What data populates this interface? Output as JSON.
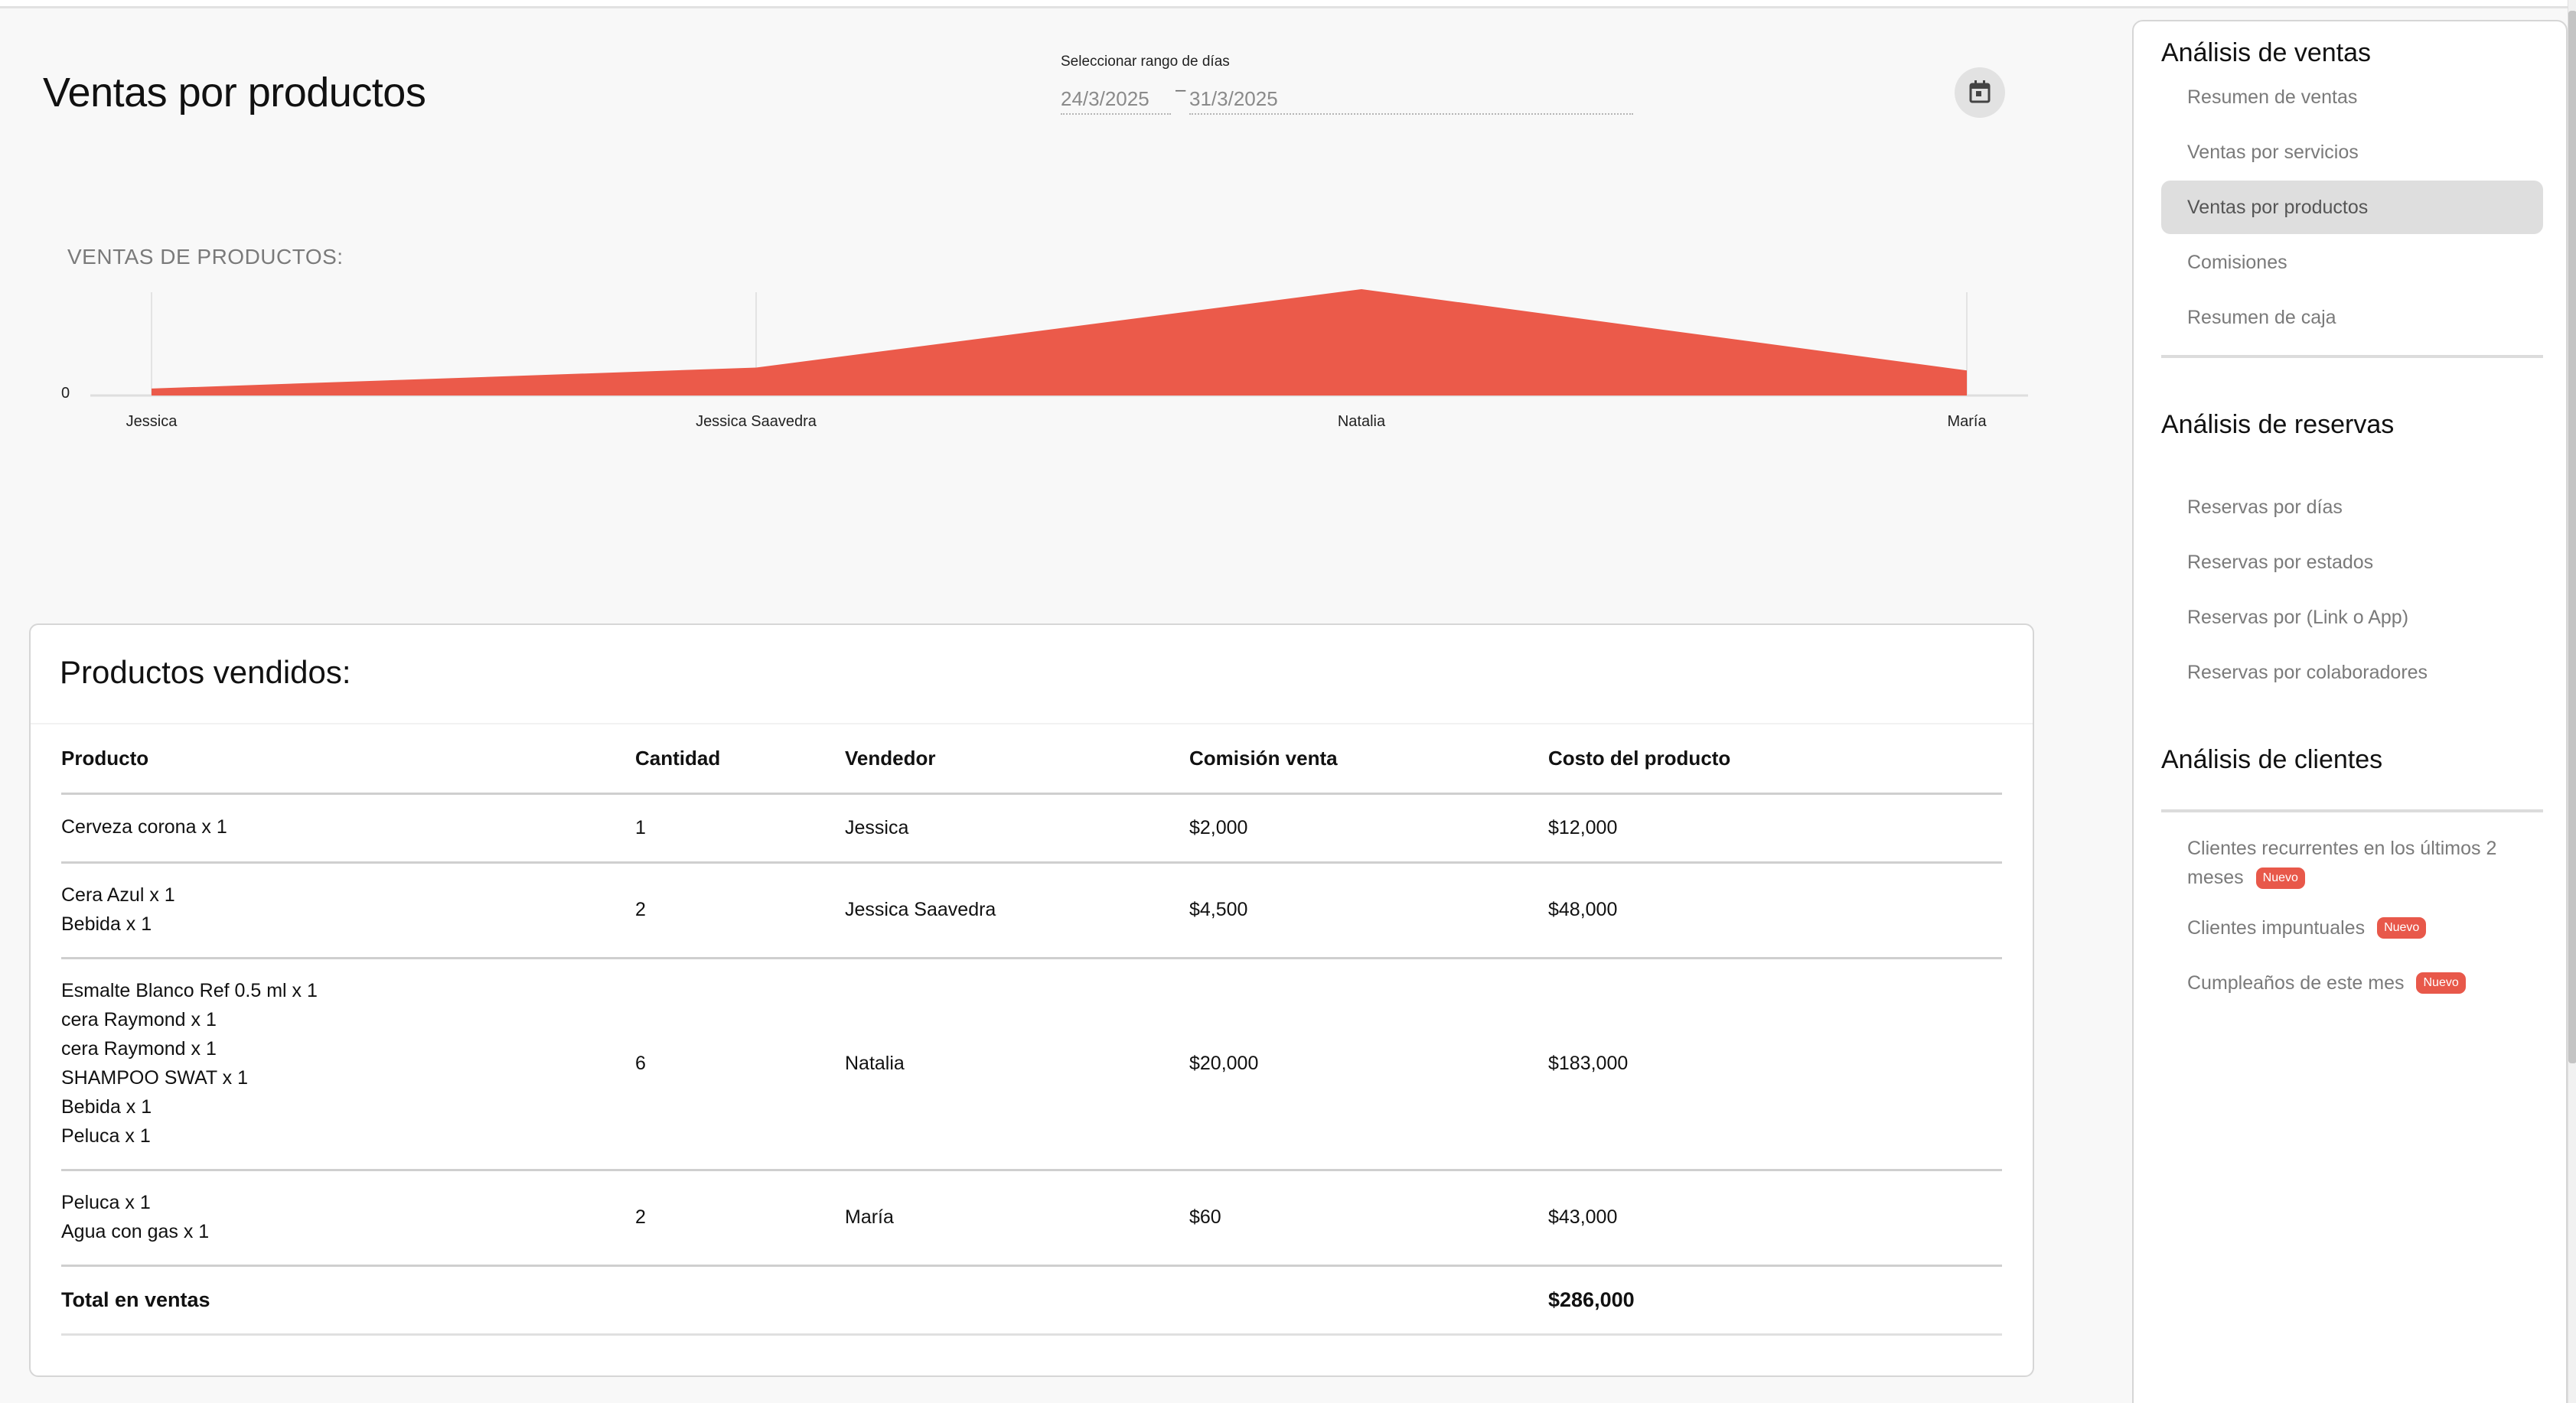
{
  "page": {
    "title": "Ventas por productos"
  },
  "date_range": {
    "label": "Seleccionar rango de días",
    "start": "24/3/2025",
    "separator": "–",
    "end": "31/3/2025",
    "calendar_icon": "calendar-icon"
  },
  "chart_section": {
    "title": "VENTAS DE PRODUCTOS:"
  },
  "chart_data": {
    "type": "area",
    "title": "VENTAS DE PRODUCTOS:",
    "categories": [
      "Jessica",
      "Jessica Saavedra",
      "Natalia",
      "María"
    ],
    "series": [
      {
        "name": "Costo del producto",
        "values": [
          12000,
          48000,
          183000,
          43000
        ],
        "color": "#eb5a4a"
      }
    ],
    "ytick_labels": [
      "0"
    ],
    "xlabel": "",
    "ylabel": "",
    "ylim": [
      0,
      183000
    ],
    "grid": "vertical lines at category positions",
    "legend": "none"
  },
  "table": {
    "title": "Productos vendidos:",
    "columns": [
      "Producto",
      "Cantidad",
      "Vendedor",
      "Comisión venta",
      "Costo del producto"
    ],
    "rows": [
      {
        "products": [
          "Cerveza corona x 1"
        ],
        "quantity": "1",
        "seller": "Jessica",
        "commission": "$2,000",
        "cost": "$12,000"
      },
      {
        "products": [
          "Cera Azul x 1",
          "Bebida x 1"
        ],
        "quantity": "2",
        "seller": "Jessica Saavedra",
        "commission": "$4,500",
        "cost": "$48,000"
      },
      {
        "products": [
          "Esmalte Blanco Ref 0.5 ml x 1",
          "cera Raymond x 1",
          "cera Raymond x 1",
          "SHAMPOO SWAT x 1",
          "Bebida x 1",
          "Peluca x 1"
        ],
        "quantity": "6",
        "seller": "Natalia",
        "commission": "$20,000",
        "cost": "$183,000"
      },
      {
        "products": [
          "Peluca x 1",
          "Agua con gas x 1"
        ],
        "quantity": "2",
        "seller": "María",
        "commission": "$60",
        "cost": "$43,000"
      }
    ],
    "total": {
      "label": "Total en ventas",
      "value": "$286,000"
    }
  },
  "sidebar": {
    "sections": [
      {
        "title": "Análisis de ventas",
        "items": [
          {
            "label": "Resumen de ventas"
          },
          {
            "label": "Ventas por servicios"
          },
          {
            "label": "Ventas por productos",
            "active": true
          },
          {
            "label": "Comisiones"
          },
          {
            "label": "Resumen de caja"
          }
        ]
      },
      {
        "title": "Análisis de reservas",
        "items": [
          {
            "label": "Reservas por días"
          },
          {
            "label": "Reservas por estados"
          },
          {
            "label": "Reservas por (Link o App)"
          },
          {
            "label": "Reservas por colaboradores"
          }
        ]
      },
      {
        "title": "Análisis de clientes",
        "items": [
          {
            "label": "Clientes recurrentes en los últimos 2 meses",
            "badge": "Nuevo"
          },
          {
            "label": "Clientes impuntuales",
            "badge": "Nuevo"
          },
          {
            "label": "Cumpleaños de este mes",
            "badge": "Nuevo"
          }
        ]
      }
    ]
  },
  "colors": {
    "accent": "#eb5a4a",
    "active_item_bg": "#dedede",
    "badge_bg": "#e8584a"
  }
}
